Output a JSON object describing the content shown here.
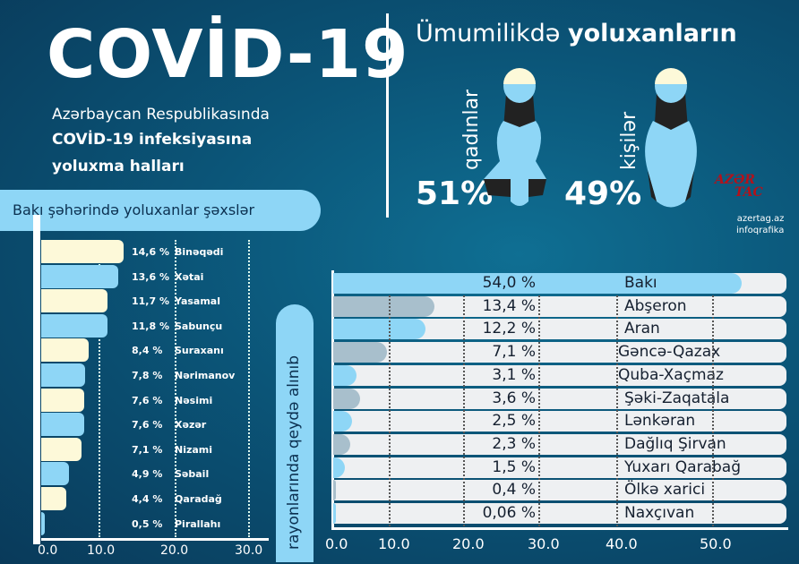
{
  "header": {
    "title": "COVİD-19",
    "subtitle_line1": "Azərbaycan Respublikasında",
    "subtitle_line2": "COVİD-19 infeksiyasına",
    "subtitle_line3": "yoluxma halları"
  },
  "baku_label": "Bakı şəhərində yoluxanlar şəxslər",
  "regions_label": "rayonlarında qeydə alınıb",
  "gender": {
    "title_light": "Ümumilikdə",
    "title_bold": "yoluxanların",
    "women_label": "qadınlar",
    "women_pct": "51%",
    "men_label": "kişilər",
    "men_pct": "49%"
  },
  "logo": {
    "text_top": "AZƏR",
    "text_bottom": "TAC",
    "site": "azertag.az",
    "caption": "infoqrafika"
  },
  "colors": {
    "light_blue": "#8ed6f6",
    "cream": "#fdf9d9",
    "grey": "#a8bfcc",
    "background": "#0b5578"
  },
  "chart_data": [
    {
      "type": "bar",
      "orientation": "horizontal",
      "categories": [
        "Binəqədi",
        "Xətai",
        "Yasamal",
        "Sabunçu",
        "Suraxanı",
        "Nərimanov",
        "Nəsimi",
        "Xəzər",
        "Nizami",
        "Səbail",
        "Qaradağ",
        "Pirallahı"
      ],
      "values": [
        14.6,
        13.6,
        11.7,
        11.8,
        8.4,
        7.8,
        7.6,
        7.6,
        7.1,
        4.9,
        4.4,
        0.5
      ],
      "labels": [
        "14,6 %",
        "13,6 %",
        "11,7 %",
        "11,8 %",
        "8,4 %",
        "7,8 %",
        "7,6 %",
        "7,6 %",
        "7,1 %",
        "4,9 %",
        "4,4 %",
        "0,5 %"
      ],
      "xticks": [
        "0.0",
        "10.0",
        "20.0",
        "30.0"
      ],
      "xlim": [
        0,
        30
      ]
    },
    {
      "type": "bar",
      "orientation": "horizontal",
      "categories": [
        "Bakı",
        "Abşeron",
        "Aran",
        "Gəncə-Qazax",
        "Quba-Xaçmaz",
        "Şəki-Zaqatala",
        "Lənkəran",
        "Dağlıq Şirvan",
        "Yuxarı Qarabağ",
        "Ölkə xarici",
        "Naxçıvan"
      ],
      "values": [
        54.0,
        13.4,
        12.2,
        7.1,
        3.1,
        3.6,
        2.5,
        2.3,
        1.5,
        0.4,
        0.06
      ],
      "labels": [
        "54,0 %",
        "13,4 %",
        "12,2 %",
        "7,1 %",
        "3,1 %",
        "3,6 %",
        "2,5 %",
        "2,3 %",
        "1,5 %",
        "0,4 %",
        "0,06 %"
      ],
      "xticks": [
        "0.0",
        "10.0",
        "20.0",
        "30.0",
        "40.0",
        "50.0"
      ],
      "xlim": [
        0,
        55
      ]
    }
  ]
}
